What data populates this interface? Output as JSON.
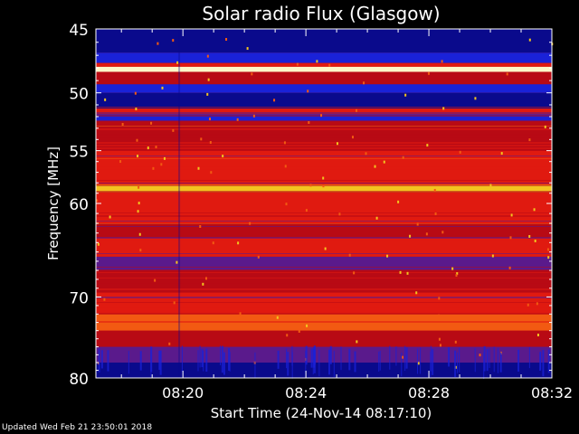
{
  "chart_data": {
    "type": "heatmap",
    "title": "Solar radio Flux (Glasgow)",
    "ylabel": "Frequency [MHz]",
    "xlabel": "Start Time (24-Nov-14 08:17:10)",
    "y_ticks": [
      "45",
      "50",
      "55",
      "60",
      "70",
      "80"
    ],
    "x_ticks": [
      "08:20",
      "08:24",
      "08:28",
      "08:32"
    ],
    "x_tick_minutes": [
      20,
      24,
      28,
      32
    ],
    "x_range_minutes": [
      17.17,
      32.0
    ],
    "y_tick_values": [
      45,
      50,
      55,
      60,
      70,
      80
    ],
    "y_scale": "log",
    "ylim": [
      45,
      80
    ],
    "bands": [
      {
        "from": 45.0,
        "to": 46.8,
        "level": "blue-dark"
      },
      {
        "from": 46.8,
        "to": 47.6,
        "level": "blue"
      },
      {
        "from": 47.6,
        "to": 47.9,
        "level": "red"
      },
      {
        "from": 47.9,
        "to": 48.3,
        "level": "white"
      },
      {
        "from": 48.3,
        "to": 49.3,
        "level": "red-dark"
      },
      {
        "from": 49.3,
        "to": 50.0,
        "level": "blue"
      },
      {
        "from": 50.0,
        "to": 51.3,
        "level": "blue-dark"
      },
      {
        "from": 51.3,
        "to": 51.8,
        "level": "red"
      },
      {
        "from": 51.8,
        "to": 52.4,
        "level": "blue"
      },
      {
        "from": 52.4,
        "to": 55.0,
        "level": "red-dark"
      },
      {
        "from": 55.0,
        "to": 58.2,
        "level": "red"
      },
      {
        "from": 58.2,
        "to": 58.9,
        "level": "yellow"
      },
      {
        "from": 58.9,
        "to": 62.0,
        "level": "red"
      },
      {
        "from": 62.0,
        "to": 63.5,
        "level": "red-dark"
      },
      {
        "from": 63.5,
        "to": 65.5,
        "level": "red"
      },
      {
        "from": 65.5,
        "to": 67.0,
        "level": "purple"
      },
      {
        "from": 67.0,
        "to": 69.5,
        "level": "red-dark"
      },
      {
        "from": 69.5,
        "to": 72.0,
        "level": "red"
      },
      {
        "from": 72.0,
        "to": 74.0,
        "level": "orange"
      },
      {
        "from": 74.0,
        "to": 76.0,
        "level": "red-dark"
      },
      {
        "from": 76.0,
        "to": 78.0,
        "level": "purple"
      },
      {
        "from": 78.0,
        "to": 80.0,
        "level": "blue-dark"
      }
    ]
  },
  "footer": {
    "updated": "Updated Wed Feb 21 23:50:01 2018"
  },
  "colors": {
    "background": "#000000",
    "blue-dark": "#0a0a8c",
    "blue": "#1a22d8",
    "purple": "#5a1a8c",
    "red-dark": "#b80a14",
    "red": "#e01a10",
    "orange": "#f25a12",
    "yellow": "#f2c420",
    "white": "#fff8c8"
  }
}
